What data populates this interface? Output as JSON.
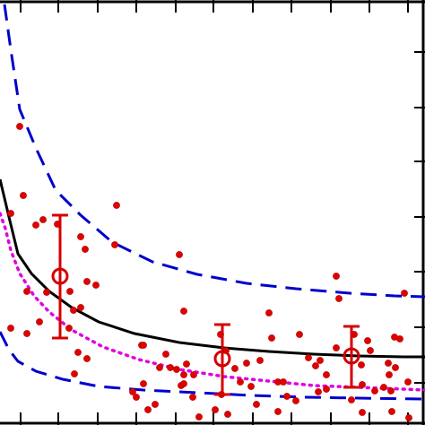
{
  "chart_data": {
    "type": "scatter",
    "title": "",
    "xlabel": "",
    "ylabel": "",
    "xlim": [
      0,
      474
    ],
    "ylim": [
      0,
      474
    ],
    "grid": false,
    "legend": "none",
    "colors": {
      "axis": "#000000",
      "scatter": "#e00000",
      "error_bars": "#d40000",
      "solid_curve": "#000000",
      "dashed_curve": "#0000cc",
      "dotted_curve": "#e000e0"
    },
    "scatter_points": [
      [
        22,
        141
      ],
      [
        26,
        218
      ],
      [
        12,
        238
      ],
      [
        40,
        251
      ],
      [
        48,
        245
      ],
      [
        64,
        250
      ],
      [
        90,
        264
      ],
      [
        95,
        278
      ],
      [
        97,
        314
      ],
      [
        107,
        318
      ],
      [
        12,
        366
      ],
      [
        30,
        372
      ],
      [
        44,
        359
      ],
      [
        30,
        325
      ],
      [
        52,
        326
      ],
      [
        78,
        325
      ],
      [
        82,
        346
      ],
      [
        90,
        343
      ],
      [
        77,
        366
      ],
      [
        87,
        393
      ],
      [
        97,
        400
      ],
      [
        83,
        417
      ],
      [
        130,
        229
      ],
      [
        128,
        273
      ],
      [
        200,
        284
      ],
      [
        205,
        347
      ],
      [
        158,
        385
      ],
      [
        185,
        395
      ],
      [
        178,
        410
      ],
      [
        190,
        410
      ],
      [
        197,
        412
      ],
      [
        205,
        418
      ],
      [
        208,
        406
      ],
      [
        216,
        418
      ],
      [
        202,
        430
      ],
      [
        215,
        443
      ],
      [
        222,
        465
      ],
      [
        252,
        391
      ],
      [
        262,
        411
      ],
      [
        275,
        405
      ],
      [
        290,
        402
      ],
      [
        268,
        426
      ],
      [
        280,
        431
      ],
      [
        286,
        451
      ],
      [
        300,
        349
      ],
      [
        303,
        377
      ],
      [
        310,
        426
      ],
      [
        316,
        426
      ],
      [
        320,
        442
      ],
      [
        334,
        373
      ],
      [
        344,
        399
      ],
      [
        352,
        408
      ],
      [
        357,
        402
      ],
      [
        364,
        418
      ],
      [
        364,
        434
      ],
      [
        355,
        437
      ],
      [
        375,
        308
      ],
      [
        378,
        333
      ],
      [
        375,
        388
      ],
      [
        395,
        373
      ],
      [
        403,
        407
      ],
      [
        404,
        429
      ],
      [
        410,
        380
      ],
      [
        413,
        391
      ],
      [
        418,
        436
      ],
      [
        428,
        432
      ],
      [
        434,
        418
      ],
      [
        433,
        405
      ],
      [
        440,
        376
      ],
      [
        441,
        410
      ],
      [
        446,
        378
      ],
      [
        451,
        327
      ],
      [
        436,
        436
      ],
      [
        160,
        428
      ],
      [
        148,
        437
      ],
      [
        173,
        451
      ],
      [
        247,
        440
      ],
      [
        240,
        457
      ],
      [
        254,
        462
      ],
      [
        310,
        459
      ],
      [
        330,
        447
      ],
      [
        392,
        446
      ],
      [
        404,
        460
      ],
      [
        437,
        459
      ],
      [
        456,
        466
      ],
      [
        455,
        426
      ],
      [
        246,
        373
      ],
      [
        152,
        443
      ],
      [
        165,
        457
      ],
      [
        160,
        385
      ],
      [
        205,
        428
      ]
    ],
    "error_bars": [
      {
        "x": 67,
        "y": 308,
        "low": 240,
        "high": 377
      },
      {
        "x": 248,
        "y": 400,
        "low": 362,
        "high": 440
      },
      {
        "x": 392,
        "y": 397,
        "low": 364,
        "high": 432
      }
    ],
    "solid_curve": [
      [
        0,
        200
      ],
      [
        10,
        242
      ],
      [
        20,
        283
      ],
      [
        35,
        305
      ],
      [
        55,
        325
      ],
      [
        80,
        343
      ],
      [
        110,
        359
      ],
      [
        150,
        372
      ],
      [
        200,
        382
      ],
      [
        250,
        388
      ],
      [
        300,
        392
      ],
      [
        350,
        395
      ],
      [
        400,
        397
      ],
      [
        450,
        398
      ],
      [
        474,
        398
      ]
    ],
    "dashed_upper": [
      [
        5,
        5
      ],
      [
        12,
        55
      ],
      [
        22,
        122
      ],
      [
        40,
        165
      ],
      [
        62,
        212
      ],
      [
        90,
        240
      ],
      [
        125,
        270
      ],
      [
        170,
        292
      ],
      [
        220,
        306
      ],
      [
        275,
        316
      ],
      [
        330,
        322
      ],
      [
        390,
        327
      ],
      [
        440,
        330
      ],
      [
        474,
        331
      ]
    ],
    "dashed_lower": [
      [
        0,
        370
      ],
      [
        10,
        390
      ],
      [
        20,
        403
      ],
      [
        40,
        414
      ],
      [
        70,
        423
      ],
      [
        110,
        431
      ],
      [
        160,
        435
      ],
      [
        220,
        438
      ],
      [
        280,
        441
      ],
      [
        340,
        443
      ],
      [
        400,
        444
      ],
      [
        474,
        445
      ]
    ],
    "dotted_curve": [
      [
        0,
        238
      ],
      [
        6,
        255
      ],
      [
        12,
        279
      ],
      [
        22,
        305
      ],
      [
        38,
        330
      ],
      [
        55,
        348
      ],
      [
        80,
        368
      ],
      [
        115,
        387
      ],
      [
        155,
        401
      ],
      [
        200,
        412
      ],
      [
        250,
        420
      ],
      [
        300,
        425
      ],
      [
        350,
        430
      ],
      [
        400,
        432
      ],
      [
        450,
        434
      ],
      [
        474,
        435
      ]
    ],
    "x_ticks": [
      23,
      65,
      109,
      152,
      196,
      238,
      282,
      325,
      369,
      412,
      455
    ],
    "y_ticks": [
      58,
      120,
      180,
      242,
      303,
      365,
      427
    ]
  }
}
